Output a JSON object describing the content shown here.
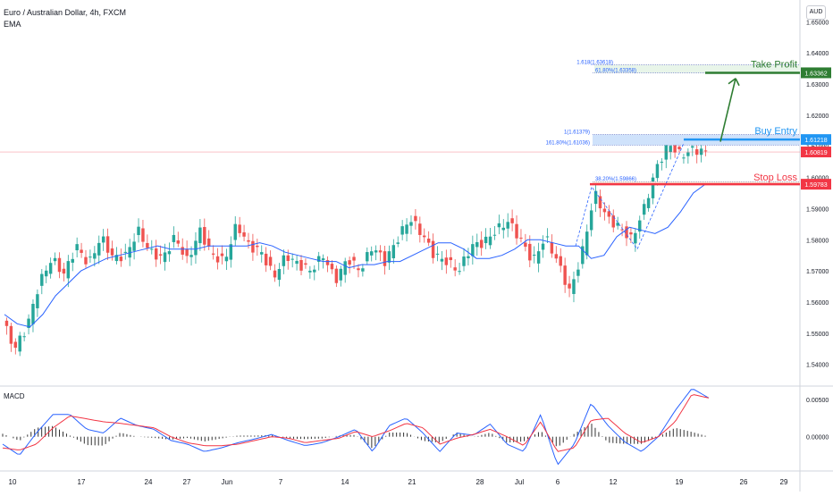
{
  "header": {
    "title": "Euro / Australian Dollar, 4h, FXCM",
    "indicator": "EMA",
    "currency": "AUD"
  },
  "chart_data": [
    {
      "type": "candlestick",
      "title": "Euro / Australian Dollar, 4h, FXCM",
      "y_ticks": [
        1.54,
        1.55,
        1.56,
        1.57,
        1.58,
        1.59,
        1.6,
        1.61,
        1.62,
        1.63,
        1.64,
        1.65
      ],
      "y_tick_labels": [
        "1.54000",
        "1.55000",
        "1.56000",
        "1.57000",
        "1.58000",
        "1.59000",
        "1.60000",
        "1.61000",
        "1.62000",
        "1.63000",
        "1.64000",
        "1.65000"
      ],
      "x_tick_labels": [
        "10",
        "17",
        "24",
        "27",
        "Jun",
        "7",
        "14",
        "21",
        "28",
        "Jul",
        "6",
        "12",
        "19",
        "26",
        "29"
      ],
      "ylim": [
        1.533,
        1.657
      ],
      "close_path": [
        1.554,
        1.545,
        1.552,
        1.566,
        1.574,
        1.569,
        1.578,
        1.572,
        1.581,
        1.574,
        1.575,
        1.583,
        1.576,
        1.574,
        1.581,
        1.573,
        1.583,
        1.575,
        1.573,
        1.585,
        1.578,
        1.576,
        1.568,
        1.575,
        1.572,
        1.57,
        1.575,
        1.567,
        1.574,
        1.57,
        1.578,
        1.573,
        1.58,
        1.587,
        1.582,
        1.575,
        1.573,
        1.57,
        1.578,
        1.579,
        1.583,
        1.586,
        1.58,
        1.573,
        1.581,
        1.573,
        1.563,
        1.576,
        1.595,
        1.587,
        1.584,
        1.58,
        1.59,
        1.603,
        1.611,
        1.607,
        1.609,
        1.6082
      ],
      "ema_path": [
        1.556,
        1.553,
        1.552,
        1.556,
        1.562,
        1.566,
        1.57,
        1.572,
        1.574,
        1.575,
        1.576,
        1.577,
        1.578,
        1.577,
        1.577,
        1.577,
        1.578,
        1.578,
        1.578,
        1.578,
        1.579,
        1.578,
        1.576,
        1.575,
        1.574,
        1.573,
        1.573,
        1.571,
        1.572,
        1.572,
        1.573,
        1.573,
        1.575,
        1.577,
        1.579,
        1.579,
        1.577,
        1.574,
        1.574,
        1.575,
        1.577,
        1.58,
        1.58,
        1.579,
        1.578,
        1.578,
        1.574,
        1.575,
        1.581,
        1.584,
        1.583,
        1.582,
        1.584,
        1.589,
        1.595,
        1.598
      ],
      "price_labels": [
        {
          "value": 1.63362,
          "text": "1.63362",
          "color": "#2e7d32"
        },
        {
          "value": 1.61218,
          "text": "1.61218",
          "color": "#2196f3"
        },
        {
          "value": 1.60819,
          "text": "1.60819",
          "color": "#f23645"
        },
        {
          "value": 1.59783,
          "text": "1.59783",
          "color": "#f23645"
        }
      ],
      "levels": [
        {
          "name": "Take Profit",
          "value": 1.63362,
          "color": "#2e7d32"
        },
        {
          "name": "Buy Entry",
          "value": 1.61218,
          "color": "#2196f3"
        },
        {
          "name": "Stop Loss",
          "value": 1.59783,
          "color": "#f23645"
        }
      ],
      "fib_labels": [
        {
          "text": "1.618(1.63618)",
          "value": 1.63618
        },
        {
          "text": "61.80%(1.63358)",
          "value": 1.63358
        },
        {
          "text": "1(1.61379)",
          "value": 1.61379
        },
        {
          "text": "161.80%(1.61036)",
          "value": 1.61036
        },
        {
          "text": "38.20%(1.59866)",
          "value": 1.59866
        }
      ],
      "current_price": 1.60819,
      "colors": {
        "up": "#26a69a",
        "down": "#ef5350",
        "ema": "#2962ff"
      }
    },
    {
      "type": "macd",
      "title": "MACD",
      "y_ticks": [
        0.0,
        0.005
      ],
      "y_tick_labels": [
        "0.00000",
        "0.00500"
      ],
      "ylim": [
        -0.0046,
        0.0068
      ],
      "macd_path": [
        -0.001,
        -0.0025,
        0.0005,
        0.003,
        0.003,
        0.001,
        0.0005,
        0.0025,
        0.0015,
        0.001,
        -0.0005,
        -0.001,
        -0.002,
        -0.0015,
        -0.0008,
        -0.0003,
        0.0003,
        -0.0005,
        -0.0012,
        -0.0008,
        0.0,
        0.001,
        -0.002,
        0.0015,
        0.0025,
        0.0005,
        -0.002,
        0.0005,
        0.0002,
        0.0017,
        -0.001,
        -0.002,
        0.003,
        -0.0038,
        -0.001,
        0.0045,
        0.0015,
        -0.0007,
        -0.002,
        0.0,
        0.0035,
        0.0065,
        0.0052
      ],
      "signal_path": [
        -0.0015,
        -0.0018,
        -0.001,
        0.0012,
        0.0028,
        0.0024,
        0.002,
        0.0018,
        0.0015,
        0.0012,
        0.0,
        -0.0008,
        -0.0012,
        -0.0012,
        -0.001,
        -0.0005,
        0.0,
        -0.0002,
        -0.0008,
        -0.0005,
        -0.0002,
        0.0007,
        0.0,
        0.0008,
        0.0018,
        0.0012,
        -0.001,
        -0.0002,
        0.0003,
        0.001,
        0.0,
        -0.0012,
        0.002,
        -0.002,
        -0.0015,
        0.0022,
        0.0025,
        0.0005,
        -0.0008,
        0.0,
        0.002,
        0.0057,
        0.0052
      ],
      "colors": {
        "macd": "#2962ff",
        "signal": "#f23645",
        "hist": "#333333"
      }
    }
  ]
}
